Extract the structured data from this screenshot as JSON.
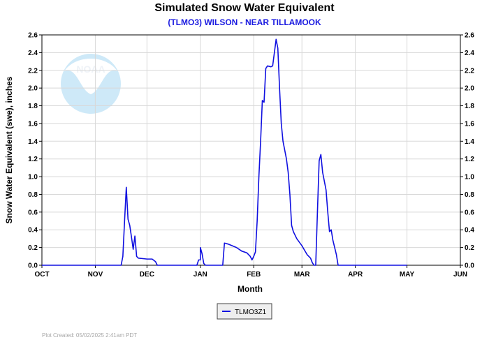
{
  "chart_data": {
    "type": "line",
    "title": "Simulated Snow Water Equivalent",
    "subtitle": "(TLMO3) WILSON - NEAR TILLAMOOK",
    "xlabel": "Month",
    "ylabel": "Snow Water Equivalent (swe),  inches",
    "ylim": [
      0,
      2.6
    ],
    "yticks": [
      "0.0",
      "0.2",
      "0.4",
      "0.6",
      "0.8",
      "1.0",
      "1.2",
      "1.4",
      "1.6",
      "1.8",
      "2.0",
      "2.2",
      "2.4",
      "2.6"
    ],
    "xlim": [
      "2024-10-01",
      "2025-06-01"
    ],
    "xticks": [
      {
        "label": "OCT",
        "date": "2024-10-01"
      },
      {
        "label": "NOV",
        "date": "2024-11-01"
      },
      {
        "label": "DEC",
        "date": "2024-12-01"
      },
      {
        "label": "JAN",
        "date": "2025-01-01"
      },
      {
        "label": "FEB",
        "date": "2025-02-01"
      },
      {
        "label": "MAR",
        "date": "2025-03-01"
      },
      {
        "label": "APR",
        "date": "2025-04-01"
      },
      {
        "label": "MAY",
        "date": "2025-05-01"
      },
      {
        "label": "JUN",
        "date": "2025-06-01"
      }
    ],
    "grid": true,
    "legend_position": "bottom-center",
    "logo": "NOAA",
    "series": [
      {
        "name": "TLMO3Z1",
        "color": "#1010e0",
        "points": [
          [
            "2024-10-01",
            0
          ],
          [
            "2024-11-16",
            0
          ],
          [
            "2024-11-17",
            0.1
          ],
          [
            "2024-11-18",
            0.5
          ],
          [
            "2024-11-19",
            0.88
          ],
          [
            "2024-11-20",
            0.52
          ],
          [
            "2024-11-21",
            0.45
          ],
          [
            "2024-11-22",
            0.32
          ],
          [
            "2024-11-23",
            0.18
          ],
          [
            "2024-11-24",
            0.33
          ],
          [
            "2024-11-25",
            0.1
          ],
          [
            "2024-11-26",
            0.08
          ],
          [
            "2024-12-01",
            0.07
          ],
          [
            "2024-12-04",
            0.07
          ],
          [
            "2024-12-06",
            0.04
          ],
          [
            "2024-12-07",
            0
          ],
          [
            "2024-12-30",
            0
          ],
          [
            "2024-12-31",
            0.06
          ],
          [
            "2025-01-01",
            0.06
          ],
          [
            "2025-01-01",
            0.2
          ],
          [
            "2025-01-02",
            0.13
          ],
          [
            "2025-01-03",
            0.02
          ],
          [
            "2025-01-04",
            0
          ],
          [
            "2025-01-14",
            0
          ],
          [
            "2025-01-15",
            0.25
          ],
          [
            "2025-01-17",
            0.24
          ],
          [
            "2025-01-22",
            0.2
          ],
          [
            "2025-01-25",
            0.16
          ],
          [
            "2025-01-28",
            0.14
          ],
          [
            "2025-01-30",
            0.1
          ],
          [
            "2025-01-31",
            0.06
          ],
          [
            "2025-02-01",
            0.1
          ],
          [
            "2025-02-02",
            0.15
          ],
          [
            "2025-02-03",
            0.5
          ],
          [
            "2025-02-04",
            1.0
          ],
          [
            "2025-02-05",
            1.4
          ],
          [
            "2025-02-06",
            1.86
          ],
          [
            "2025-02-07",
            1.84
          ],
          [
            "2025-02-08",
            2.22
          ],
          [
            "2025-02-09",
            2.25
          ],
          [
            "2025-02-11",
            2.24
          ],
          [
            "2025-02-12",
            2.25
          ],
          [
            "2025-02-13",
            2.4
          ],
          [
            "2025-02-14",
            2.55
          ],
          [
            "2025-02-15",
            2.45
          ],
          [
            "2025-02-16",
            2.0
          ],
          [
            "2025-02-17",
            1.6
          ],
          [
            "2025-02-18",
            1.4
          ],
          [
            "2025-02-20",
            1.2
          ],
          [
            "2025-02-21",
            1.05
          ],
          [
            "2025-02-22",
            0.8
          ],
          [
            "2025-02-23",
            0.45
          ],
          [
            "2025-02-24",
            0.38
          ],
          [
            "2025-02-26",
            0.3
          ],
          [
            "2025-03-01",
            0.22
          ],
          [
            "2025-03-04",
            0.12
          ],
          [
            "2025-03-06",
            0.08
          ],
          [
            "2025-03-07",
            0.03
          ],
          [
            "2025-03-08",
            0
          ],
          [
            "2025-03-09",
            0
          ],
          [
            "2025-03-10",
            0.6
          ],
          [
            "2025-03-11",
            1.18
          ],
          [
            "2025-03-12",
            1.25
          ],
          [
            "2025-03-13",
            1.05
          ],
          [
            "2025-03-14",
            0.95
          ],
          [
            "2025-03-15",
            0.85
          ],
          [
            "2025-03-16",
            0.6
          ],
          [
            "2025-03-17",
            0.38
          ],
          [
            "2025-03-18",
            0.4
          ],
          [
            "2025-03-19",
            0.28
          ],
          [
            "2025-03-20",
            0.2
          ],
          [
            "2025-03-21",
            0.12
          ],
          [
            "2025-03-22",
            0
          ],
          [
            "2025-05-01",
            0
          ]
        ]
      }
    ]
  },
  "footer": {
    "plot_created": "Plot Created: 05/02/2025 2:41am PDT"
  }
}
